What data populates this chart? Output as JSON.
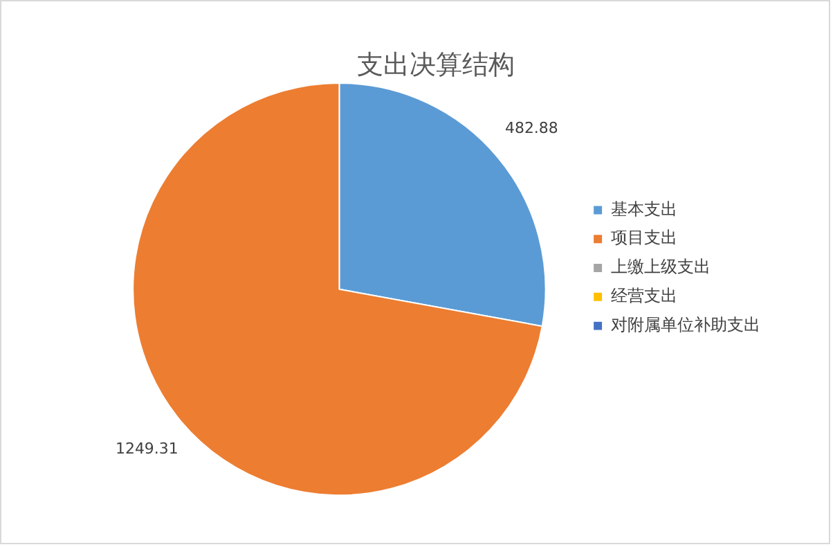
{
  "chart_data": {
    "type": "pie",
    "title": "支出决算结构",
    "categories": [
      "基本支出",
      "项目支出",
      "上缴上级支出",
      "经营支出",
      "对附属单位补助支出"
    ],
    "values": [
      482.88,
      1249.31,
      0,
      0,
      0
    ],
    "colors": [
      "#5b9bd5",
      "#ed7d31",
      "#a5a5a5",
      "#ffc000",
      "#4472c4"
    ],
    "value_labels": [
      "482.88",
      "1249.31",
      null,
      null,
      null
    ],
    "legend": "right"
  }
}
